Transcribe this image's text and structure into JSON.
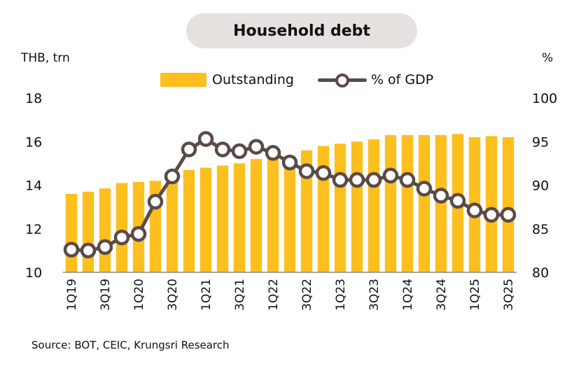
{
  "chart_data": {
    "type": "bar+line",
    "title": "Household debt",
    "left_axis_label": "THB, trn",
    "right_axis_label": "%",
    "left_ylim": [
      10,
      18
    ],
    "left_ticks": [
      "18",
      "16",
      "14",
      "12",
      "10"
    ],
    "right_ylim": [
      80,
      100
    ],
    "right_ticks": [
      "100",
      "95",
      "90",
      "85",
      "80"
    ],
    "categories": [
      "1Q19",
      "2Q19",
      "3Q19",
      "4Q19",
      "1Q20",
      "2Q20",
      "3Q20",
      "4Q20",
      "1Q21",
      "2Q21",
      "3Q21",
      "4Q21",
      "1Q22",
      "2Q22",
      "3Q22",
      "4Q22",
      "1Q23",
      "2Q23",
      "3Q23",
      "4Q23",
      "1Q24",
      "2Q24",
      "3Q24",
      "4Q24",
      "1Q25",
      "2Q25",
      "3Q25"
    ],
    "x_tick_labels": [
      "1Q19",
      "3Q19",
      "1Q20",
      "3Q20",
      "1Q21",
      "3Q21",
      "1Q22",
      "3Q22",
      "1Q23",
      "3Q23",
      "1Q24",
      "3Q24",
      "1Q25",
      "3Q25"
    ],
    "series": [
      {
        "name": "Outstanding",
        "type": "bar",
        "axis": "left",
        "color": "#fcbf1e",
        "values": [
          13.6,
          13.7,
          13.85,
          14.1,
          14.15,
          14.2,
          14.65,
          14.7,
          14.8,
          14.9,
          15.0,
          15.2,
          15.3,
          15.35,
          15.6,
          15.8,
          15.9,
          16.0,
          16.1,
          16.3,
          16.3,
          16.3,
          16.3,
          16.35,
          16.2,
          16.25,
          16.2
        ]
      },
      {
        "name": "% of GDP",
        "type": "line",
        "axis": "right",
        "color": "#5a4a48",
        "values": [
          82.6,
          82.5,
          82.9,
          84.0,
          84.4,
          88.1,
          91.0,
          94.1,
          95.3,
          94.1,
          93.9,
          94.4,
          93.7,
          92.6,
          91.6,
          91.4,
          90.6,
          90.6,
          90.6,
          91.1,
          90.6,
          89.6,
          88.8,
          88.2,
          87.1,
          86.6,
          86.6
        ]
      }
    ]
  },
  "legend": {
    "bar_label": "Outstanding",
    "line_label": "% of GDP"
  },
  "source": "Source: BOT, CEIC,  Krungsri Research"
}
